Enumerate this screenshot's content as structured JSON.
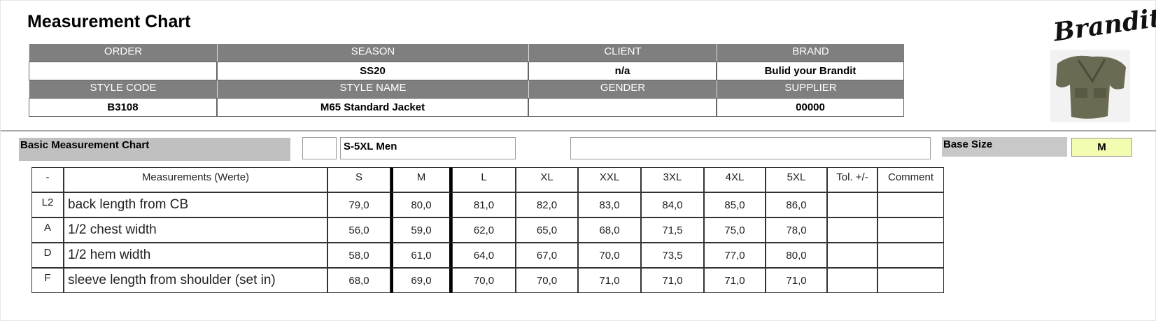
{
  "header": {
    "title": "Measurement Chart",
    "logo": "Brandit"
  },
  "info": {
    "rows": [
      [
        {
          "label": "ORDER"
        },
        {
          "label": "SEASON",
          "value": "SS20"
        },
        {
          "label": "CLIENT",
          "value": "n/a"
        },
        {
          "label": "BRAND",
          "value": "Bulid your Brandit"
        }
      ],
      [
        {
          "label": "STYLE CODE",
          "value": "B3108"
        },
        {
          "label": "STYLE NAME",
          "value": "M65 Standard Jacket"
        },
        {
          "label": "GENDER"
        },
        {
          "label": "SUPPLIER",
          "value": "00000"
        }
      ]
    ]
  },
  "section": {
    "title": "Basic Measurement Chart",
    "range": "S-5XL Men",
    "base_size_label": "Base Size",
    "base_size": "M"
  },
  "table": {
    "columns": [
      "-",
      "Measurements (Werte)",
      "S",
      "M",
      "L",
      "XL",
      "XXL",
      "3XL",
      "4XL",
      "5XL",
      "Tol. +/-",
      "Comment"
    ],
    "rows": [
      {
        "code": "L2",
        "name": "back length from CB",
        "values": [
          "79,0",
          "80,0",
          "81,0",
          "82,0",
          "83,0",
          "84,0",
          "85,0",
          "86,0"
        ]
      },
      {
        "code": "A",
        "name": "1/2 chest width",
        "values": [
          "56,0",
          "59,0",
          "62,0",
          "65,0",
          "68,0",
          "71,5",
          "75,0",
          "78,0"
        ]
      },
      {
        "code": "D",
        "name": "1/2 hem width",
        "values": [
          "58,0",
          "61,0",
          "64,0",
          "67,0",
          "70,0",
          "73,5",
          "77,0",
          "80,0"
        ]
      },
      {
        "code": "F",
        "name": "sleeve length from shoulder (set in)",
        "values": [
          "68,0",
          "69,0",
          "70,0",
          "70,0",
          "71,0",
          "71,0",
          "71,0",
          "71,0"
        ]
      }
    ]
  }
}
